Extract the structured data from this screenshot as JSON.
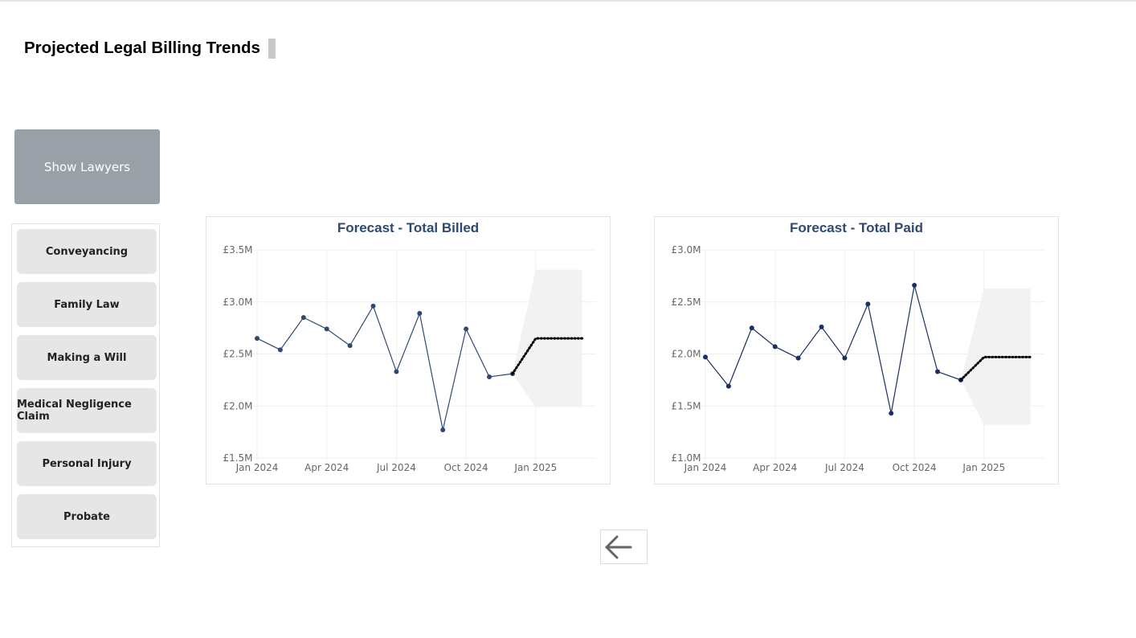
{
  "page": {
    "title": "Projected Legal Billing Trends"
  },
  "buttons": {
    "show_lawyers": "Show Lawyers"
  },
  "slicer": {
    "items": [
      "Conveyancing",
      "Family Law",
      "Making a Will",
      "Medical Negligence Claim",
      "Personal Injury",
      "Probate"
    ]
  },
  "colors": {
    "series": "#2e4a70",
    "series_dark": "#1c2f63",
    "forecast": "#000000",
    "band": "#f2f2f2",
    "title": "#2e4a70",
    "axis_text": "#666666",
    "grid": "#efefef"
  },
  "chart_data": [
    {
      "type": "line",
      "title": "Forecast - Total Billed",
      "xlabel": "",
      "ylabel": "",
      "x_ticks": [
        "Jan 2024",
        "Apr 2024",
        "Jul 2024",
        "Oct 2024",
        "Jan 2025"
      ],
      "y_ticks": [
        "£1.5M",
        "£2.0M",
        "£2.5M",
        "£3.0M",
        "£3.5M"
      ],
      "ylim": [
        1.5,
        3.5
      ],
      "grid": true,
      "series": [
        {
          "x": [
            "2024-01",
            "2024-02",
            "2024-03",
            "2024-04",
            "2024-05",
            "2024-06",
            "2024-07",
            "2024-08",
            "2024-09",
            "2024-10",
            "2024-11",
            "2024-12"
          ],
          "values": [
            2.65,
            2.54,
            2.85,
            2.74,
            2.58,
            2.96,
            2.33,
            2.89,
            1.77,
            2.74,
            2.28,
            2.31
          ]
        }
      ],
      "forecast": {
        "x": [
          "2024-12",
          "2025-01",
          "2025-02",
          "2025-03"
        ],
        "values": [
          2.31,
          2.65,
          2.65,
          2.65
        ],
        "upper": [
          2.31,
          3.31,
          3.31,
          3.31
        ],
        "lower": [
          2.31,
          1.99,
          1.99,
          1.99
        ]
      }
    },
    {
      "type": "line",
      "title": "Forecast - Total Paid",
      "xlabel": "",
      "ylabel": "",
      "x_ticks": [
        "Jan 2024",
        "Apr 2024",
        "Jul 2024",
        "Oct 2024",
        "Jan 2025"
      ],
      "y_ticks": [
        "£1.0M",
        "£1.5M",
        "£2.0M",
        "£2.5M",
        "£3.0M"
      ],
      "ylim": [
        1.0,
        3.0
      ],
      "grid": true,
      "series": [
        {
          "x": [
            "2024-01",
            "2024-02",
            "2024-03",
            "2024-04",
            "2024-05",
            "2024-06",
            "2024-07",
            "2024-08",
            "2024-09",
            "2024-10",
            "2024-11",
            "2024-12"
          ],
          "values": [
            1.97,
            1.69,
            2.25,
            2.07,
            1.96,
            2.26,
            1.96,
            2.48,
            1.43,
            2.66,
            1.83,
            1.75
          ]
        }
      ],
      "forecast": {
        "x": [
          "2024-12",
          "2025-01",
          "2025-02",
          "2025-03"
        ],
        "values": [
          1.75,
          1.97,
          1.97,
          1.97
        ],
        "upper": [
          1.75,
          2.63,
          2.63,
          2.63
        ],
        "lower": [
          1.75,
          1.32,
          1.32,
          1.32
        ]
      }
    }
  ]
}
